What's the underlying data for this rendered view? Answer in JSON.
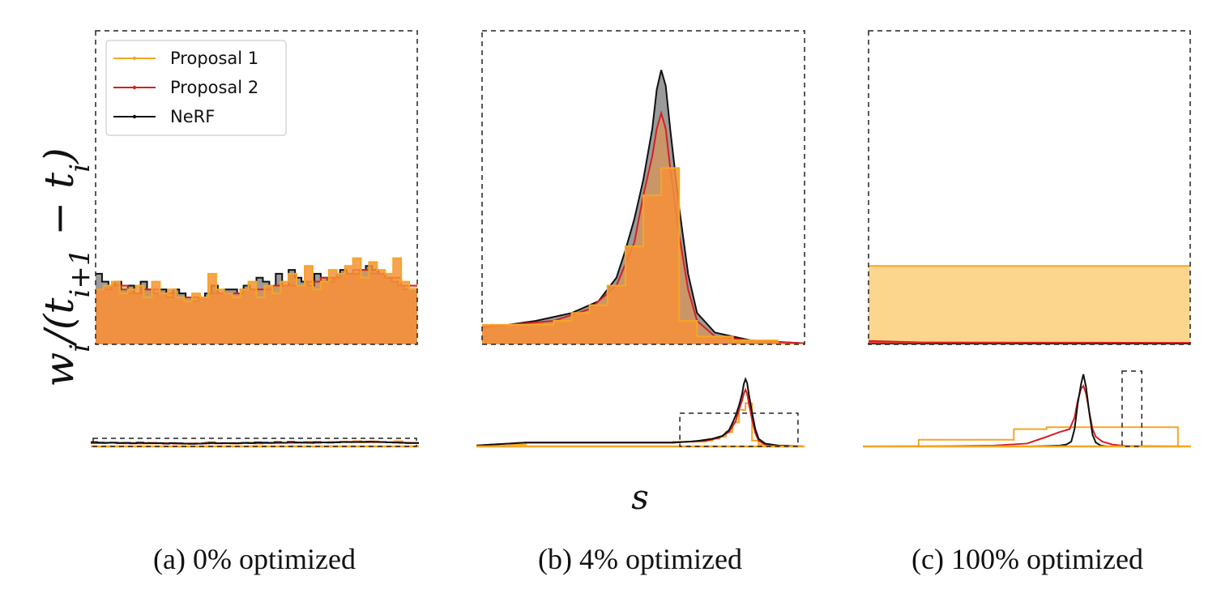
{
  "figure": {
    "ylabel": "w_i/(t_{i+1} − t_i)",
    "xlabel": "s",
    "colors": {
      "proposal1": "#f5a623",
      "proposal2": "#d62020",
      "nerf": "#111111",
      "fill_proposal1_light": "#fbd27f",
      "fill_proposal1": "#f7913a",
      "fill_nerf": "#8a8a8a"
    },
    "legend": [
      "Proposal 1",
      "Proposal 2",
      "NeRF"
    ],
    "legend_placement": "top-left"
  },
  "chart_data": [
    {
      "type": "area",
      "caption": "(a) 0% optimized",
      "s_range": [
        0,
        1
      ],
      "series": [
        {
          "name": "NeRF",
          "breaks": [
            0,
            0.02,
            0.04,
            0.06,
            0.08,
            0.1,
            0.12,
            0.14,
            0.16,
            0.18,
            0.2,
            0.22,
            0.24,
            0.26,
            0.28,
            0.3,
            0.32,
            0.34,
            0.36,
            0.38,
            0.4,
            0.42,
            0.44,
            0.46,
            0.48,
            0.5,
            0.52,
            0.54,
            0.56,
            0.58,
            0.6,
            0.62,
            0.64,
            0.66,
            0.68,
            0.7,
            0.72,
            0.74,
            0.76,
            0.78,
            0.8,
            0.82,
            0.84,
            0.86,
            0.88,
            0.9,
            0.92,
            0.94,
            0.96,
            0.98,
            1.0
          ],
          "values": [
            0.18,
            0.16,
            0.15,
            0.16,
            0.14,
            0.15,
            0.13,
            0.16,
            0.14,
            0.13,
            0.14,
            0.12,
            0.14,
            0.13,
            0.12,
            0.11,
            0.12,
            0.13,
            0.15,
            0.13,
            0.14,
            0.14,
            0.13,
            0.15,
            0.14,
            0.17,
            0.16,
            0.15,
            0.18,
            0.15,
            0.19,
            0.17,
            0.16,
            0.15,
            0.18,
            0.17,
            0.16,
            0.17,
            0.19,
            0.18,
            0.18,
            0.19,
            0.2,
            0.19,
            0.18,
            0.17,
            0.16,
            0.15,
            0.14,
            0.14
          ]
        },
        {
          "name": "Proposal 1",
          "breaks": [
            0,
            0.025,
            0.05,
            0.075,
            0.1,
            0.125,
            0.15,
            0.175,
            0.2,
            0.225,
            0.25,
            0.275,
            0.3,
            0.325,
            0.35,
            0.375,
            0.4,
            0.425,
            0.45,
            0.475,
            0.5,
            0.525,
            0.55,
            0.575,
            0.6,
            0.625,
            0.65,
            0.675,
            0.7,
            0.725,
            0.75,
            0.775,
            0.8,
            0.825,
            0.85,
            0.875,
            0.9,
            0.925,
            0.95,
            0.975,
            1.0
          ],
          "values": [
            0.14,
            0.15,
            0.16,
            0.13,
            0.14,
            0.15,
            0.12,
            0.16,
            0.13,
            0.14,
            0.12,
            0.11,
            0.13,
            0.12,
            0.18,
            0.14,
            0.13,
            0.12,
            0.14,
            0.16,
            0.12,
            0.15,
            0.13,
            0.16,
            0.18,
            0.15,
            0.2,
            0.14,
            0.16,
            0.19,
            0.18,
            0.2,
            0.22,
            0.17,
            0.21,
            0.19,
            0.18,
            0.22,
            0.16,
            0.14
          ]
        },
        {
          "name": "Proposal 2",
          "breaks": [
            0,
            0.05,
            0.1,
            0.15,
            0.2,
            0.25,
            0.3,
            0.35,
            0.4,
            0.45,
            0.5,
            0.55,
            0.6,
            0.65,
            0.7,
            0.75,
            0.8,
            0.85,
            0.9,
            0.95,
            1.0
          ],
          "values": [
            0.14,
            0.15,
            0.13,
            0.14,
            0.13,
            0.12,
            0.12,
            0.13,
            0.13,
            0.14,
            0.14,
            0.15,
            0.15,
            0.16,
            0.17,
            0.18,
            0.19,
            0.18,
            0.17,
            0.15
          ]
        }
      ],
      "main_ylim": [
        0,
        0.8
      ],
      "zoom_window_s": [
        0,
        1
      ],
      "overview_ylim": [
        0,
        3.2
      ]
    },
    {
      "type": "area",
      "caption": "(b) 4% optimized",
      "s_range": [
        0,
        1
      ],
      "series": [
        {
          "name": "NeRF",
          "points": [
            [
              0,
              0.01
            ],
            [
              0.05,
              0.02
            ],
            [
              0.1,
              0.03
            ],
            [
              0.15,
              0.04
            ],
            [
              0.2,
              0.04
            ],
            [
              0.25,
              0.04
            ],
            [
              0.3,
              0.04
            ],
            [
              0.35,
              0.04
            ],
            [
              0.4,
              0.04
            ],
            [
              0.45,
              0.04
            ],
            [
              0.5,
              0.04
            ],
            [
              0.55,
              0.04
            ],
            [
              0.6,
              0.04
            ],
            [
              0.65,
              0.05
            ],
            [
              0.68,
              0.06
            ],
            [
              0.72,
              0.08
            ],
            [
              0.75,
              0.11
            ],
            [
              0.77,
              0.17
            ],
            [
              0.78,
              0.24
            ],
            [
              0.79,
              0.32
            ],
            [
              0.8,
              0.42
            ],
            [
              0.81,
              0.55
            ],
            [
              0.815,
              0.65
            ],
            [
              0.82,
              0.7
            ],
            [
              0.825,
              0.66
            ],
            [
              0.83,
              0.55
            ],
            [
              0.84,
              0.35
            ],
            [
              0.85,
              0.18
            ],
            [
              0.86,
              0.08
            ],
            [
              0.88,
              0.03
            ],
            [
              0.92,
              0.01
            ],
            [
              1.0,
              0.0
            ]
          ]
        },
        {
          "name": "Proposal 1",
          "breaks": [
            0,
            0.05,
            0.1,
            0.15,
            0.2,
            0.25,
            0.3,
            0.35,
            0.4,
            0.45,
            0.5,
            0.55,
            0.6,
            0.65,
            0.7,
            0.72,
            0.74,
            0.76,
            0.78,
            0.8,
            0.82,
            0.84,
            0.86,
            0.9,
            0.95,
            1.0
          ],
          "values": [
            0.01,
            0.01,
            0.02,
            0.04,
            0.04,
            0.04,
            0.04,
            0.04,
            0.04,
            0.04,
            0.04,
            0.04,
            0.05,
            0.05,
            0.06,
            0.08,
            0.1,
            0.15,
            0.25,
            0.38,
            0.45,
            0.06,
            0.02,
            0.01,
            0.0
          ]
        },
        {
          "name": "Proposal 2",
          "points": [
            [
              0,
              0.01
            ],
            [
              0.05,
              0.02
            ],
            [
              0.1,
              0.03
            ],
            [
              0.15,
              0.04
            ],
            [
              0.2,
              0.04
            ],
            [
              0.3,
              0.04
            ],
            [
              0.4,
              0.04
            ],
            [
              0.5,
              0.04
            ],
            [
              0.6,
              0.04
            ],
            [
              0.65,
              0.05
            ],
            [
              0.7,
              0.06
            ],
            [
              0.74,
              0.09
            ],
            [
              0.77,
              0.15
            ],
            [
              0.79,
              0.26
            ],
            [
              0.8,
              0.38
            ],
            [
              0.81,
              0.48
            ],
            [
              0.815,
              0.55
            ],
            [
              0.82,
              0.59
            ],
            [
              0.825,
              0.55
            ],
            [
              0.83,
              0.45
            ],
            [
              0.84,
              0.28
            ],
            [
              0.85,
              0.14
            ],
            [
              0.86,
              0.06
            ],
            [
              0.88,
              0.02
            ],
            [
              0.92,
              0.01
            ],
            [
              1.0,
              0.0
            ]
          ]
        }
      ],
      "main_ylim": [
        0,
        0.8
      ],
      "zoom_window_s": [
        0.62,
        0.98
      ],
      "overview_ylim": [
        0,
        0.8
      ]
    },
    {
      "type": "area",
      "caption": "(c) 100% optimized",
      "s_range": [
        0,
        1
      ],
      "series": [
        {
          "name": "NeRF",
          "points": [
            [
              0,
              0.0
            ],
            [
              0.5,
              0.0
            ],
            [
              0.56,
              0.005
            ],
            [
              0.6,
              0.01
            ],
            [
              0.62,
              0.02
            ],
            [
              0.635,
              0.05
            ],
            [
              0.645,
              0.18
            ],
            [
              0.655,
              0.45
            ],
            [
              0.665,
              0.65
            ],
            [
              0.672,
              0.75
            ],
            [
              0.68,
              0.62
            ],
            [
              0.69,
              0.35
            ],
            [
              0.7,
              0.12
            ],
            [
              0.71,
              0.04
            ],
            [
              0.725,
              0.01
            ],
            [
              0.75,
              0.0
            ],
            [
              1.0,
              0.0
            ]
          ]
        },
        {
          "name": "Proposal 1",
          "breaks": [
            0,
            0.17,
            0.46,
            0.56,
            0.96,
            1.0
          ],
          "values": [
            0.0,
            0.07,
            0.18,
            0.2,
            0.0
          ]
        },
        {
          "name": "Proposal 2",
          "points": [
            [
              0,
              0.0
            ],
            [
              0.2,
              0.002
            ],
            [
              0.3,
              0.005
            ],
            [
              0.4,
              0.01
            ],
            [
              0.5,
              0.03
            ],
            [
              0.56,
              0.1
            ],
            [
              0.6,
              0.15
            ],
            [
              0.63,
              0.18
            ],
            [
              0.645,
              0.3
            ],
            [
              0.655,
              0.48
            ],
            [
              0.665,
              0.6
            ],
            [
              0.672,
              0.63
            ],
            [
              0.68,
              0.55
            ],
            [
              0.69,
              0.36
            ],
            [
              0.7,
              0.18
            ],
            [
              0.71,
              0.1
            ],
            [
              0.73,
              0.05
            ],
            [
              0.76,
              0.02
            ],
            [
              0.8,
              0.005
            ],
            [
              1.0,
              0.0
            ]
          ]
        }
      ],
      "main_ylim": [
        0,
        0.8
      ],
      "zoom_window_s": [
        0.79,
        0.85
      ],
      "overview_ylim": [
        0,
        0.8
      ]
    }
  ]
}
